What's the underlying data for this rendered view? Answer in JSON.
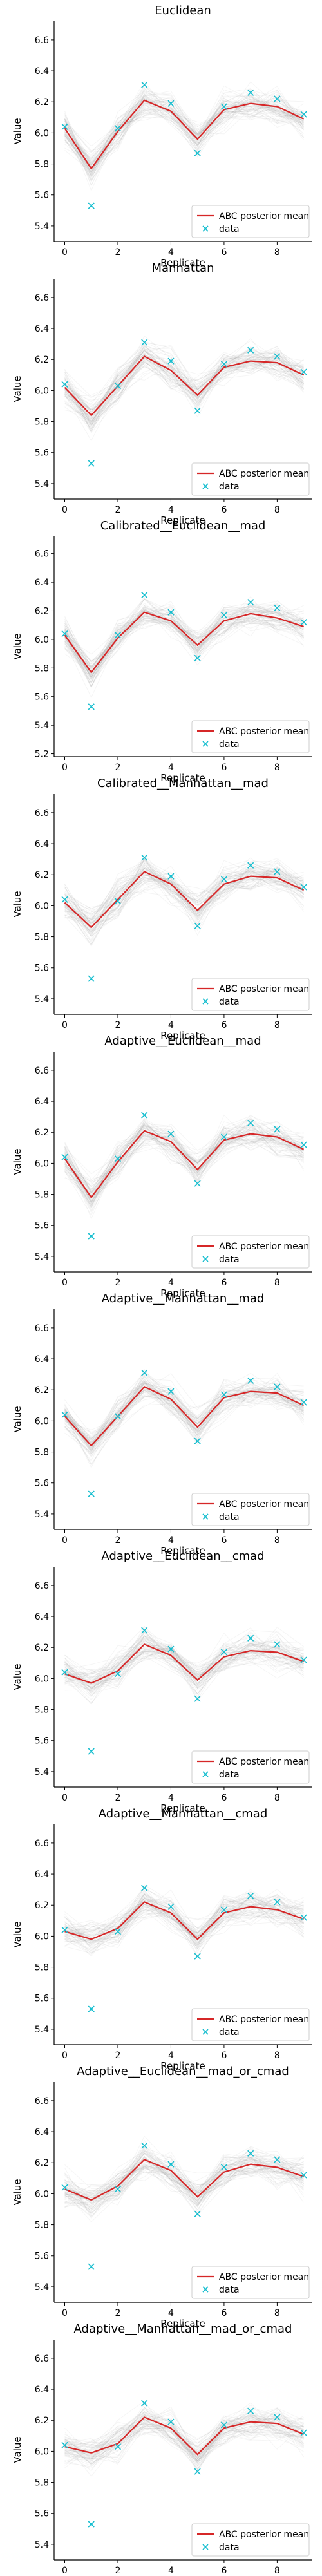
{
  "chart_data": [
    {
      "type": "line",
      "title": "Euclidean",
      "xlabel": "Replicate",
      "ylabel": "Value",
      "x": [
        0,
        1,
        2,
        3,
        4,
        5,
        6,
        7,
        8,
        9
      ],
      "xticks": [
        0,
        2,
        4,
        6,
        8
      ],
      "xlim": [
        -0.4,
        9.3
      ],
      "yticks": [
        5.4,
        5.6,
        5.8,
        6.0,
        6.2,
        6.4,
        6.6
      ],
      "ylim": [
        5.3,
        6.72
      ],
      "legend_position": "bottom-right",
      "grid": false,
      "series": [
        {
          "name": "ABC posterior mean",
          "kind": "line",
          "color": "#d62728",
          "values": [
            6.03,
            5.77,
            6.01,
            6.21,
            6.14,
            5.96,
            6.15,
            6.19,
            6.17,
            6.09
          ]
        },
        {
          "name": "data",
          "kind": "marker",
          "color": "#17becf",
          "values": [
            6.04,
            5.53,
            6.03,
            6.31,
            6.19,
            5.87,
            6.17,
            6.26,
            6.22,
            6.12
          ]
        }
      ]
    },
    {
      "type": "line",
      "title": "Manhattan",
      "xlabel": "Replicate",
      "ylabel": "Value",
      "x": [
        0,
        1,
        2,
        3,
        4,
        5,
        6,
        7,
        8,
        9
      ],
      "xticks": [
        0,
        2,
        4,
        6,
        8
      ],
      "xlim": [
        -0.4,
        9.3
      ],
      "yticks": [
        5.4,
        5.6,
        5.8,
        6.0,
        6.2,
        6.4,
        6.6
      ],
      "ylim": [
        5.3,
        6.72
      ],
      "legend_position": "bottom-right",
      "grid": false,
      "series": [
        {
          "name": "ABC posterior mean",
          "kind": "line",
          "color": "#d62728",
          "values": [
            6.02,
            5.84,
            6.03,
            6.22,
            6.13,
            5.97,
            6.15,
            6.19,
            6.18,
            6.1
          ]
        },
        {
          "name": "data",
          "kind": "marker",
          "color": "#17becf",
          "values": [
            6.04,
            5.53,
            6.03,
            6.31,
            6.19,
            5.87,
            6.17,
            6.26,
            6.22,
            6.12
          ]
        }
      ]
    },
    {
      "type": "line",
      "title": "Calibrated__Euclidean__mad",
      "xlabel": "Replicate",
      "ylabel": "Value",
      "x": [
        0,
        1,
        2,
        3,
        4,
        5,
        6,
        7,
        8,
        9
      ],
      "xticks": [
        0,
        2,
        4,
        6,
        8
      ],
      "xlim": [
        -0.4,
        9.3
      ],
      "yticks": [
        5.2,
        5.4,
        5.6,
        5.8,
        6.0,
        6.2,
        6.4,
        6.6
      ],
      "ylim": [
        5.18,
        6.72
      ],
      "legend_position": "bottom-right",
      "grid": false,
      "series": [
        {
          "name": "ABC posterior mean",
          "kind": "line",
          "color": "#d62728",
          "values": [
            6.03,
            5.77,
            6.01,
            6.19,
            6.13,
            5.96,
            6.13,
            6.18,
            6.15,
            6.09
          ]
        },
        {
          "name": "data",
          "kind": "marker",
          "color": "#17becf",
          "values": [
            6.04,
            5.53,
            6.03,
            6.31,
            6.19,
            5.87,
            6.17,
            6.26,
            6.22,
            6.12
          ]
        }
      ]
    },
    {
      "type": "line",
      "title": "Calibrated__Manhattan__mad",
      "xlabel": "Replicate",
      "ylabel": "Value",
      "x": [
        0,
        1,
        2,
        3,
        4,
        5,
        6,
        7,
        8,
        9
      ],
      "xticks": [
        0,
        2,
        4,
        6,
        8
      ],
      "xlim": [
        -0.4,
        9.3
      ],
      "yticks": [
        5.4,
        5.6,
        5.8,
        6.0,
        6.2,
        6.4,
        6.6
      ],
      "ylim": [
        5.3,
        6.72
      ],
      "legend_position": "bottom-right",
      "grid": false,
      "series": [
        {
          "name": "ABC posterior mean",
          "kind": "line",
          "color": "#d62728",
          "values": [
            6.02,
            5.86,
            6.04,
            6.22,
            6.14,
            5.97,
            6.14,
            6.19,
            6.18,
            6.1
          ]
        },
        {
          "name": "data",
          "kind": "marker",
          "color": "#17becf",
          "values": [
            6.04,
            5.53,
            6.03,
            6.31,
            6.19,
            5.87,
            6.17,
            6.26,
            6.22,
            6.12
          ]
        }
      ]
    },
    {
      "type": "line",
      "title": "Adaptive__Euclidean__mad",
      "xlabel": "Replicate",
      "ylabel": "Value",
      "x": [
        0,
        1,
        2,
        3,
        4,
        5,
        6,
        7,
        8,
        9
      ],
      "xticks": [
        0,
        2,
        4,
        6,
        8
      ],
      "xlim": [
        -0.4,
        9.3
      ],
      "yticks": [
        5.4,
        5.6,
        5.8,
        6.0,
        6.2,
        6.4,
        6.6
      ],
      "ylim": [
        5.3,
        6.72
      ],
      "legend_position": "bottom-right",
      "grid": false,
      "series": [
        {
          "name": "ABC posterior mean",
          "kind": "line",
          "color": "#d62728",
          "values": [
            6.03,
            5.78,
            6.01,
            6.21,
            6.14,
            5.96,
            6.15,
            6.19,
            6.17,
            6.09
          ]
        },
        {
          "name": "data",
          "kind": "marker",
          "color": "#17becf",
          "values": [
            6.04,
            5.53,
            6.03,
            6.31,
            6.19,
            5.87,
            6.17,
            6.26,
            6.22,
            6.12
          ]
        }
      ]
    },
    {
      "type": "line",
      "title": "Adaptive__Manhattan__mad",
      "xlabel": "Replicate",
      "ylabel": "Value",
      "x": [
        0,
        1,
        2,
        3,
        4,
        5,
        6,
        7,
        8,
        9
      ],
      "xticks": [
        0,
        2,
        4,
        6,
        8
      ],
      "xlim": [
        -0.4,
        9.3
      ],
      "yticks": [
        5.4,
        5.6,
        5.8,
        6.0,
        6.2,
        6.4,
        6.6
      ],
      "ylim": [
        5.3,
        6.72
      ],
      "legend_position": "bottom-right",
      "grid": false,
      "series": [
        {
          "name": "ABC posterior mean",
          "kind": "line",
          "color": "#d62728",
          "values": [
            6.03,
            5.84,
            6.03,
            6.22,
            6.14,
            5.96,
            6.15,
            6.19,
            6.18,
            6.1
          ]
        },
        {
          "name": "data",
          "kind": "marker",
          "color": "#17becf",
          "values": [
            6.04,
            5.53,
            6.03,
            6.31,
            6.19,
            5.87,
            6.17,
            6.26,
            6.22,
            6.12
          ]
        }
      ]
    },
    {
      "type": "line",
      "title": "Adaptive__Euclidean__cmad",
      "xlabel": "Replicate",
      "ylabel": "Value",
      "x": [
        0,
        1,
        2,
        3,
        4,
        5,
        6,
        7,
        8,
        9
      ],
      "xticks": [
        0,
        2,
        4,
        6,
        8
      ],
      "xlim": [
        -0.4,
        9.3
      ],
      "yticks": [
        5.4,
        5.6,
        5.8,
        6.0,
        6.2,
        6.4,
        6.6
      ],
      "ylim": [
        5.3,
        6.72
      ],
      "legend_position": "bottom-right",
      "grid": false,
      "series": [
        {
          "name": "ABC posterior mean",
          "kind": "line",
          "color": "#d62728",
          "values": [
            6.03,
            5.97,
            6.05,
            6.22,
            6.15,
            5.99,
            6.14,
            6.18,
            6.17,
            6.11
          ]
        },
        {
          "name": "data",
          "kind": "marker",
          "color": "#17becf",
          "values": [
            6.04,
            5.53,
            6.03,
            6.31,
            6.19,
            5.87,
            6.17,
            6.26,
            6.22,
            6.12
          ]
        }
      ]
    },
    {
      "type": "line",
      "title": "Adaptive__Manhattan__cmad",
      "xlabel": "Replicate",
      "ylabel": "Value",
      "x": [
        0,
        1,
        2,
        3,
        4,
        5,
        6,
        7,
        8,
        9
      ],
      "xticks": [
        0,
        2,
        4,
        6,
        8
      ],
      "xlim": [
        -0.4,
        9.3
      ],
      "yticks": [
        5.4,
        5.6,
        5.8,
        6.0,
        6.2,
        6.4,
        6.6
      ],
      "ylim": [
        5.3,
        6.72
      ],
      "legend_position": "bottom-right",
      "grid": false,
      "series": [
        {
          "name": "ABC posterior mean",
          "kind": "line",
          "color": "#d62728",
          "values": [
            6.03,
            5.98,
            6.05,
            6.22,
            6.15,
            5.98,
            6.15,
            6.19,
            6.17,
            6.11
          ]
        },
        {
          "name": "data",
          "kind": "marker",
          "color": "#17becf",
          "values": [
            6.04,
            5.53,
            6.03,
            6.31,
            6.19,
            5.87,
            6.17,
            6.26,
            6.22,
            6.12
          ]
        }
      ]
    },
    {
      "type": "line",
      "title": "Adaptive__Euclidean__mad_or_cmad",
      "xlabel": "Replicate",
      "ylabel": "Value",
      "x": [
        0,
        1,
        2,
        3,
        4,
        5,
        6,
        7,
        8,
        9
      ],
      "xticks": [
        0,
        2,
        4,
        6,
        8
      ],
      "xlim": [
        -0.4,
        9.3
      ],
      "yticks": [
        5.4,
        5.6,
        5.8,
        6.0,
        6.2,
        6.4,
        6.6
      ],
      "ylim": [
        5.3,
        6.72
      ],
      "legend_position": "bottom-right",
      "grid": false,
      "series": [
        {
          "name": "ABC posterior mean",
          "kind": "line",
          "color": "#d62728",
          "values": [
            6.03,
            5.96,
            6.05,
            6.22,
            6.15,
            5.98,
            6.14,
            6.19,
            6.17,
            6.11
          ]
        },
        {
          "name": "data",
          "kind": "marker",
          "color": "#17becf",
          "values": [
            6.04,
            5.53,
            6.03,
            6.31,
            6.19,
            5.87,
            6.17,
            6.26,
            6.22,
            6.12
          ]
        }
      ]
    },
    {
      "type": "line",
      "title": "Adaptive__Manhattan__mad_or_cmad",
      "xlabel": "Replicate",
      "ylabel": "Value",
      "x": [
        0,
        1,
        2,
        3,
        4,
        5,
        6,
        7,
        8,
        9
      ],
      "xticks": [
        0,
        2,
        4,
        6,
        8
      ],
      "xlim": [
        -0.4,
        9.3
      ],
      "yticks": [
        5.4,
        5.6,
        5.8,
        6.0,
        6.2,
        6.4,
        6.6
      ],
      "ylim": [
        5.3,
        6.72
      ],
      "legend_position": "bottom-right",
      "grid": false,
      "series": [
        {
          "name": "ABC posterior mean",
          "kind": "line",
          "color": "#d62728",
          "values": [
            6.03,
            5.99,
            6.05,
            6.22,
            6.15,
            5.98,
            6.15,
            6.19,
            6.18,
            6.11
          ]
        },
        {
          "name": "data",
          "kind": "marker",
          "color": "#17becf",
          "values": [
            6.04,
            5.53,
            6.03,
            6.31,
            6.19,
            5.87,
            6.17,
            6.26,
            6.22,
            6.12
          ]
        }
      ]
    }
  ]
}
